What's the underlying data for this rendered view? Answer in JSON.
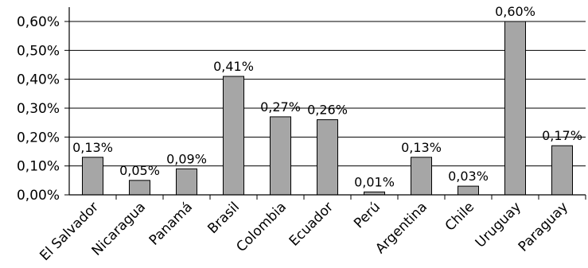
{
  "chart_data": {
    "type": "bar",
    "categories": [
      "El Salvador",
      "Nicaragua",
      "Panamá",
      "Brasil",
      "Colombia",
      "Ecuador",
      "Perú",
      "Argentina",
      "Chile",
      "Uruguay",
      "Paraguay"
    ],
    "values": [
      0.13,
      0.05,
      0.09,
      0.41,
      0.27,
      0.26,
      0.01,
      0.13,
      0.03,
      0.6,
      0.17
    ],
    "data_labels": [
      "0,13%",
      "0,05%",
      "0,09%",
      "0,41%",
      "0,27%",
      "0,26%",
      "0,01%",
      "0,13%",
      "0,03%",
      "0,60%",
      "0,17%"
    ],
    "y_ticks": [
      0,
      0.1,
      0.2,
      0.3,
      0.4,
      0.5,
      0.6
    ],
    "y_tick_labels": [
      "0,00%",
      "0,10%",
      "0,20%",
      "0,30%",
      "0,40%",
      "0,50%",
      "0,60%"
    ],
    "ylim": [
      0,
      0.6
    ],
    "grid": true,
    "legend": "none",
    "bar_color": "#a6a6a6",
    "title": "",
    "xlabel": "",
    "ylabel": ""
  }
}
